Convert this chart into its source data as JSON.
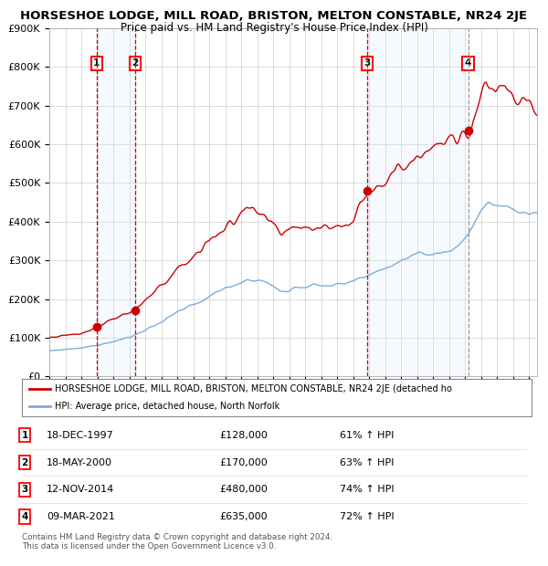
{
  "title": "HORSESHOE LODGE, MILL ROAD, BRISTON, MELTON CONSTABLE, NR24 2JE",
  "subtitle": "Price paid vs. HM Land Registry's House Price Index (HPI)",
  "ylim": [
    0,
    900000
  ],
  "yticks": [
    0,
    100000,
    200000,
    300000,
    400000,
    500000,
    600000,
    700000,
    800000,
    900000
  ],
  "ytick_labels": [
    "£0",
    "£100K",
    "£200K",
    "£300K",
    "£400K",
    "£500K",
    "£600K",
    "£700K",
    "£800K",
    "£900K"
  ],
  "transactions": [
    {
      "num": 1,
      "date": "18-DEC-1997",
      "price": 128000,
      "year": 1997.96,
      "pct": "61%",
      "dir": "↑"
    },
    {
      "num": 2,
      "date": "18-MAY-2000",
      "price": 170000,
      "year": 2000.38,
      "pct": "63%",
      "dir": "↑"
    },
    {
      "num": 3,
      "date": "12-NOV-2014",
      "price": 480000,
      "year": 2014.87,
      "pct": "74%",
      "dir": "↑"
    },
    {
      "num": 4,
      "date": "09-MAR-2021",
      "price": 635000,
      "year": 2021.19,
      "pct": "72%",
      "dir": "↑"
    }
  ],
  "hpi_color": "#7aaddc",
  "property_color": "#cc0000",
  "vline_color": "#cc0000",
  "shade_color": "#ddeeff",
  "background_color": "#ffffff",
  "grid_color": "#cccccc",
  "title_fontsize": 9.5,
  "subtitle_fontsize": 8.5,
  "footer": "Contains HM Land Registry data © Crown copyright and database right 2024.\nThis data is licensed under the Open Government Licence v3.0.",
  "legend_property": "HORSESHOE LODGE, MILL ROAD, BRISTON, MELTON CONSTABLE, NR24 2JE (detached ho",
  "legend_hpi": "HPI: Average price, detached house, North Norfolk",
  "xstart": 1995.0,
  "xend": 2025.5
}
